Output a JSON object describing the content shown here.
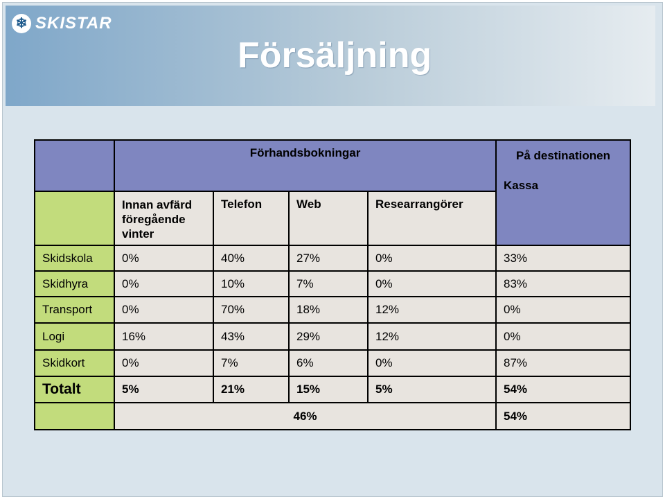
{
  "brand": {
    "name": "SKISTAR",
    "icon": "snowflake-icon"
  },
  "slide_title": "Försäljning",
  "table": {
    "group_headers": {
      "prebooking": "Förhandsbokningar",
      "destination": "På destinationen"
    },
    "column_headers": [
      "Innan avfärd föregående vinter",
      "Telefon",
      "Web",
      "Researrangörer",
      "Kassa"
    ],
    "rows": [
      {
        "label": "Skidskola",
        "values": [
          "0%",
          "40%",
          "27%",
          "0%",
          "33%"
        ]
      },
      {
        "label": "Skidhyra",
        "values": [
          "0%",
          "10%",
          "7%",
          "0%",
          "83%"
        ]
      },
      {
        "label": "Transport",
        "values": [
          "0%",
          "70%",
          "18%",
          "12%",
          "0%"
        ]
      },
      {
        "label": "Logi",
        "values": [
          "16%",
          "43%",
          "29%",
          "12%",
          "0%"
        ]
      },
      {
        "label": "Skidkort",
        "values": [
          "0%",
          "7%",
          "6%",
          "0%",
          "87%"
        ]
      }
    ],
    "total": {
      "label": "Totalt",
      "values": [
        "5%",
        "21%",
        "15%",
        "5%",
        "54%"
      ]
    },
    "summary": {
      "prebooking": "46%",
      "destination": "54%"
    }
  },
  "colors": {
    "header_blue": "#7f86c0",
    "label_green": "#c2dc7c",
    "cell_grey": "#e8e4df",
    "background": "#d9e4ec"
  }
}
